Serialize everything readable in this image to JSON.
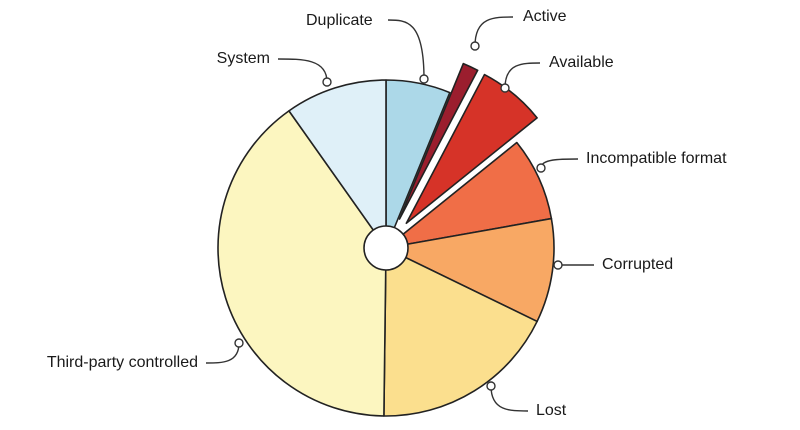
{
  "chart_data": {
    "type": "pie",
    "title": "",
    "start_at": "12 o'clock",
    "direction": "clockwise",
    "exploded": [
      "Active",
      "Available"
    ],
    "series": [
      {
        "label": "Duplicate",
        "value": 6.2,
        "color": "#acd8e8"
      },
      {
        "label": "Active",
        "value": 1.5,
        "color": "#9b1e2e"
      },
      {
        "label": "Available",
        "value": 6.5,
        "color": "#d63328"
      },
      {
        "label": "Incompatible format",
        "value": 8.0,
        "color": "#f06e47"
      },
      {
        "label": "Corrupted",
        "value": 10.0,
        "color": "#f8a864"
      },
      {
        "label": "Lost",
        "value": 18.0,
        "color": "#fbdf8e"
      },
      {
        "label": "Third-party controlled",
        "value": 40.0,
        "color": "#fcf6c0"
      },
      {
        "label": "System",
        "value": 9.8,
        "color": "#dff0f8"
      }
    ]
  }
}
